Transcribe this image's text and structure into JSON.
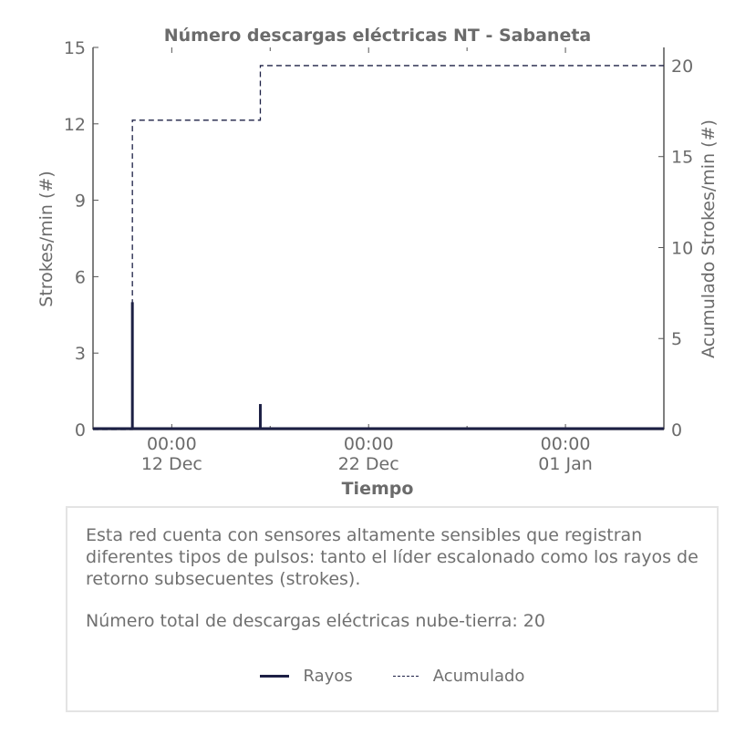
{
  "chart_data": {
    "type": "line",
    "title": "Número descargas eléctricas NT - Sabaneta",
    "xlabel": "Tiempo",
    "ylabel": "Strokes/min (#)",
    "ylabel_right": "Acumulado Strokes/min (#)",
    "ylim": [
      0,
      15
    ],
    "ylim_right": [
      0,
      21
    ],
    "yticks": [
      0,
      3,
      6,
      9,
      12,
      15
    ],
    "yticks_right": [
      0,
      5,
      10,
      15,
      20
    ],
    "xlim": [
      "2023-12-08T00:00",
      "2024-01-06T00:00"
    ],
    "xticks": [
      {
        "x": "2023-12-12T00:00",
        "time": "00:00",
        "date": "12 Dec"
      },
      {
        "x": "2023-12-22T00:00",
        "time": "00:00",
        "date": "22 Dec"
      },
      {
        "x": "2024-01-01T00:00",
        "time": "00:00",
        "date": "01 Jan"
      }
    ],
    "grid": false,
    "series": [
      {
        "name": "Rayos",
        "axis": "left",
        "style": "solid",
        "points": [
          {
            "x": "2023-12-10T00:00",
            "y": 5
          },
          {
            "x": "2023-12-16T12:00",
            "y": 1
          }
        ]
      },
      {
        "name": "Acumulado",
        "axis": "right",
        "style": "dashed",
        "points": [
          {
            "x": "2023-12-10T00:00",
            "y": 17
          },
          {
            "x": "2023-12-16T12:00",
            "y": 20
          }
        ]
      }
    ]
  },
  "info": {
    "description": "Esta red cuenta con sensores altamente sensibles que registran diferentes tipos de pulsos: tanto el líder escalonado como los rayos de retorno subsecuentes (strokes).",
    "total_text": "Número total de descargas eléctricas nube-tierra: 20"
  },
  "legend": {
    "rayos": "Rayos",
    "acumulado": "Acumulado"
  },
  "colors": {
    "series": "#1d2045",
    "axis": "#555555",
    "text": "#6b6b6b"
  }
}
